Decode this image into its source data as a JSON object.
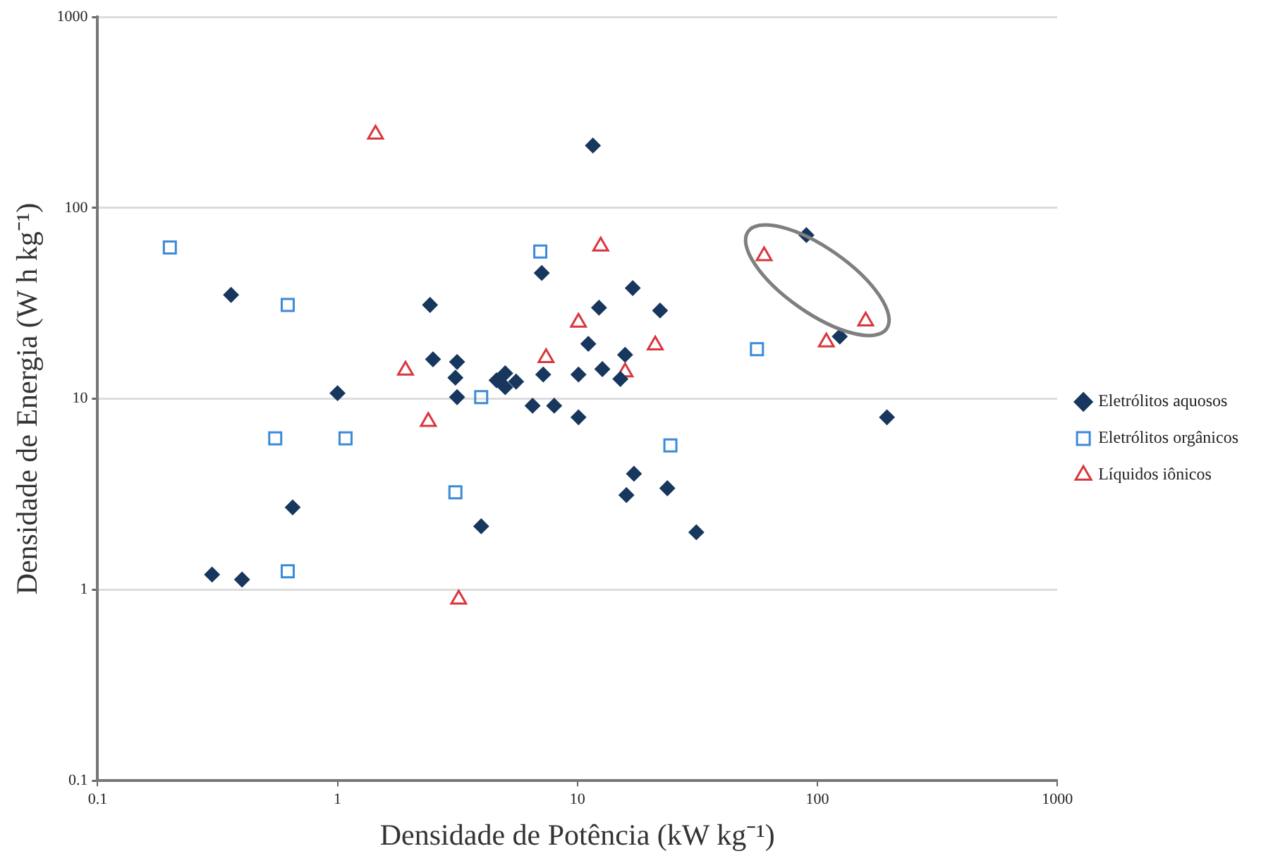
{
  "chart_data": {
    "type": "scatter",
    "xlabel": "Densidade de Potência (kW kg⁻¹)",
    "ylabel": "Densidade de Energia (W h kg⁻¹)",
    "log": "xy",
    "xlim": [
      0.1,
      1000
    ],
    "ylim": [
      0.1,
      1000
    ],
    "xticks": [
      0.1,
      1,
      10,
      100,
      1000
    ],
    "yticks": [
      0.1,
      1,
      10,
      100,
      1000
    ],
    "grid": "y",
    "legend": "right",
    "series": [
      {
        "name": "Eletrólitos aquosos",
        "color": "#17375e",
        "marker": "diamond",
        "x": [
          0.36,
          1.0,
          0.65,
          0.3,
          0.4,
          2.43,
          2.5,
          3.15,
          3.1,
          3.15,
          3.97,
          4.6,
          5.0,
          5.0,
          5.55,
          6.5,
          8.0,
          10.1,
          7.2,
          7.1,
          11.6,
          12.3,
          17.0,
          22.1,
          11.1,
          10.1,
          12.7,
          15.8,
          15.1,
          17.2,
          16.0,
          23.7,
          31.3,
          90,
          124,
          195
        ],
        "values": [
          35,
          10.7,
          2.7,
          1.2,
          1.13,
          31,
          16.1,
          15.6,
          12.9,
          10.2,
          2.15,
          12.5,
          13.6,
          11.5,
          12.3,
          9.2,
          9.2,
          8.0,
          13.4,
          45.6,
          212,
          30,
          38,
          29,
          19.4,
          13.4,
          14.3,
          17,
          12.7,
          4.05,
          3.13,
          3.4,
          2.0,
          72,
          21.2,
          8.0
        ]
      },
      {
        "name": "Eletrólitos orgânicos",
        "color": "#3b8ad9",
        "marker": "square",
        "x": [
          0.2,
          0.62,
          7.0,
          3.97,
          0.55,
          1.08,
          3.1,
          0.62,
          24.4,
          56
        ],
        "values": [
          62,
          31,
          59,
          10.2,
          6.2,
          6.2,
          3.24,
          1.25,
          5.7,
          18.2
        ]
      },
      {
        "name": "Líquidos iônicos",
        "color": "#d9363e",
        "marker": "triangle",
        "x": [
          1.44,
          1.92,
          2.39,
          7.4,
          10.1,
          12.5,
          15.8,
          21.1,
          60,
          109,
          159,
          3.2
        ],
        "values": [
          243,
          14.1,
          7.6,
          16.4,
          25.1,
          63,
          13.8,
          19.1,
          56,
          19.8,
          25.5,
          0.89
        ]
      }
    ]
  }
}
